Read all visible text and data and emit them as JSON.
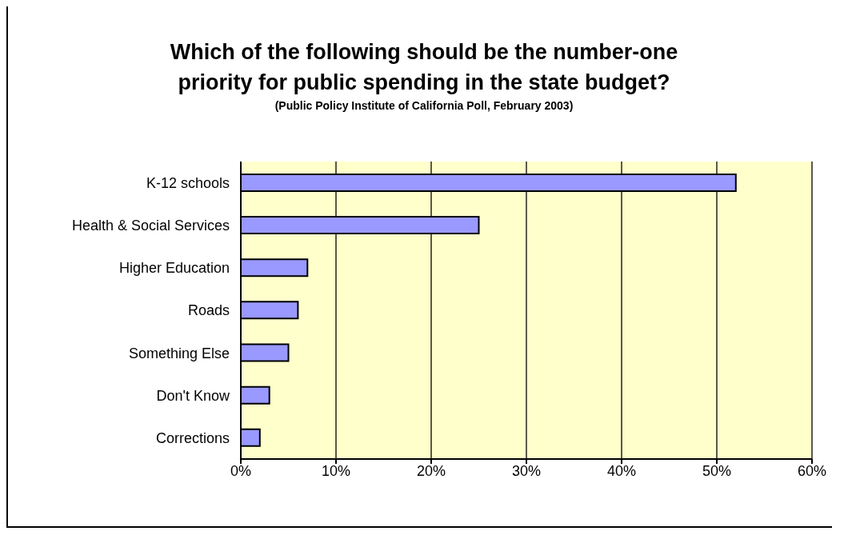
{
  "chart_data": {
    "type": "bar",
    "orientation": "horizontal",
    "title": "Which of the following should be the number-one priority for public spending in the state budget?",
    "subtitle": "(Public Policy Institute of California Poll, February 2003)",
    "categories": [
      "K-12 schools",
      "Health & Social Services",
      "Higher Education",
      "Roads",
      "Something Else",
      "Don't Know",
      "Corrections"
    ],
    "values": [
      52,
      25,
      7,
      6,
      5,
      3,
      2
    ],
    "color": "#9999ff",
    "xlim": [
      0,
      60
    ],
    "xticks": [
      {
        "value": 0,
        "label": "0%"
      },
      {
        "value": 10,
        "label": "10%"
      },
      {
        "value": 20,
        "label": "20%"
      },
      {
        "value": 30,
        "label": "30%"
      },
      {
        "value": 40,
        "label": "40%"
      },
      {
        "value": 50,
        "label": "50%"
      },
      {
        "value": 60,
        "label": "60%"
      }
    ],
    "grid": "x"
  }
}
